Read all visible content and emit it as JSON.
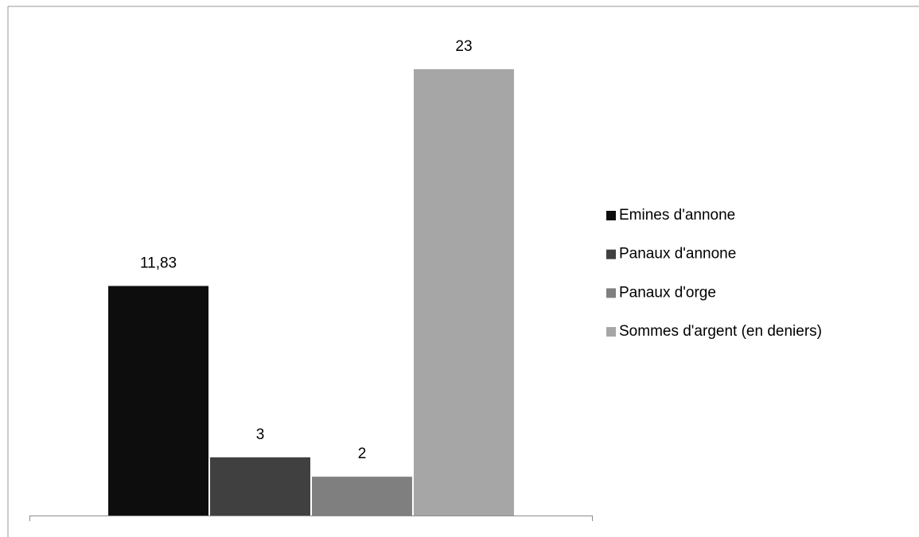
{
  "chart_data": {
    "type": "bar",
    "categories": [
      null
    ],
    "series": [
      {
        "name": "Emines d'annone",
        "color": "#0d0d0d",
        "values": [
          11.83
        ],
        "value_labels": [
          "11,83"
        ]
      },
      {
        "name": "Panaux d'annone",
        "color": "#404040",
        "values": [
          3
        ],
        "value_labels": [
          "3"
        ]
      },
      {
        "name": "Panaux d'orge",
        "color": "#7f7f7f",
        "values": [
          2
        ],
        "value_labels": [
          "2"
        ]
      },
      {
        "name": "Sommes d'argent (en deniers)",
        "color": "#a6a6a6",
        "values": [
          23
        ],
        "value_labels": [
          "23"
        ]
      }
    ],
    "legend": "right"
  }
}
